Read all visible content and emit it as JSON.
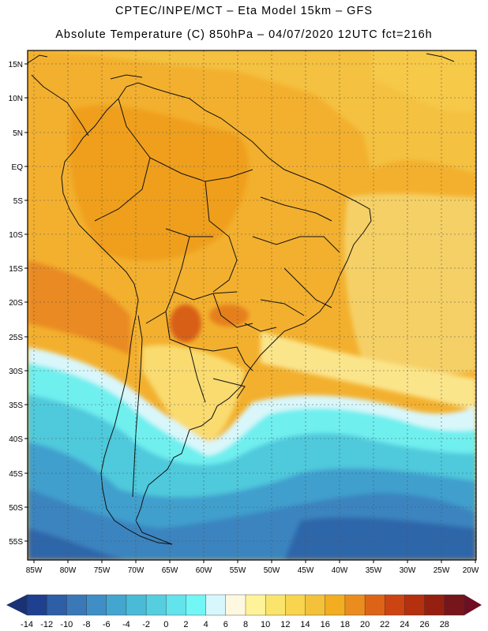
{
  "title_line1": "CPTEC/INPE/MCT –  Eta Model 15km – GFS",
  "title_line2": "Absolute Temperature (C) 850hPa – 04/07/2020 12UTC fct=216h",
  "lat_labels": [
    "15N",
    "10N",
    "5N",
    "EQ",
    "5S",
    "10S",
    "15S",
    "20S",
    "25S",
    "30S",
    "35S",
    "40S",
    "45S",
    "50S",
    "55S"
  ],
  "lon_labels": [
    "85W",
    "80W",
    "75W",
    "70W",
    "65W",
    "60W",
    "55W",
    "50W",
    "45W",
    "40W",
    "35W",
    "30W",
    "25W",
    "20W"
  ],
  "colorbar": {
    "labels": [
      "-14",
      "-12",
      "-10",
      "-8",
      "-6",
      "-4",
      "-2",
      "0",
      "2",
      "4",
      "6",
      "8",
      "10",
      "12",
      "14",
      "16",
      "18",
      "20",
      "22",
      "24",
      "26",
      "28"
    ],
    "colors": [
      "#1f3f8f",
      "#2d5ea6",
      "#3a78b7",
      "#3f8fc6",
      "#43a6cf",
      "#49bbd6",
      "#55cfe0",
      "#63e3ec",
      "#72f6f6",
      "#d6f7fb",
      "#fff8e0",
      "#fff39a",
      "#fbe46c",
      "#f8d44f",
      "#f3c13a",
      "#f2ad20",
      "#ea8d1e",
      "#dd6417",
      "#cc4412",
      "#b5300e",
      "#952010",
      "#76161a"
    ],
    "under_color": "#1a3274",
    "over_color": "#6e0d23"
  },
  "map": {
    "field": "Absolute Temperature 850hPa",
    "units": "C",
    "region": "South America",
    "lat_range": [
      -58,
      17
    ],
    "lon_range": [
      -86,
      -20
    ]
  }
}
